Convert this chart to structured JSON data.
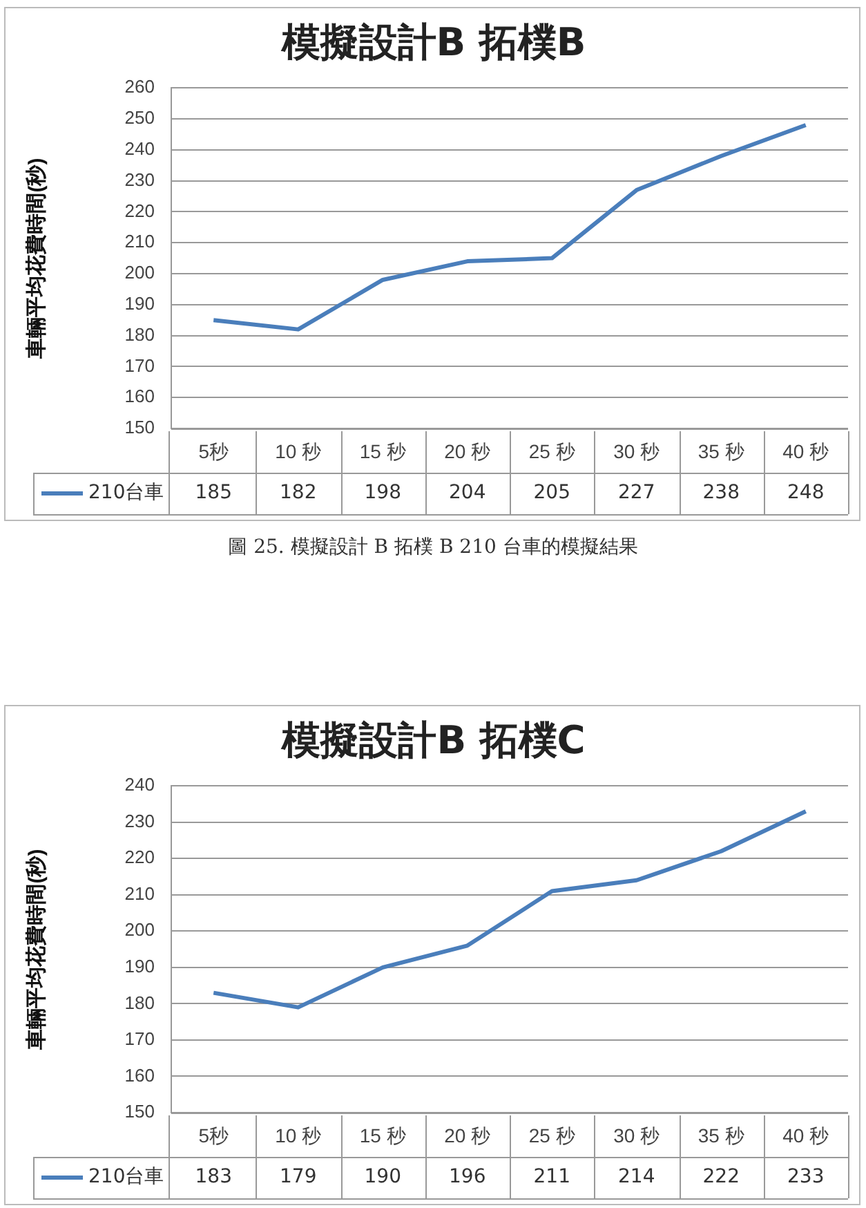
{
  "chart_data": [
    {
      "type": "line",
      "title": "模擬設計B 拓樸B",
      "ylabel": "車輛平均花費時間(秒)",
      "categories": [
        "5秒",
        "10 秒",
        "15 秒",
        "20 秒",
        "25 秒",
        "30 秒",
        "35 秒",
        "40 秒"
      ],
      "series": [
        {
          "name": "210台車",
          "color": "#4a7ebb",
          "values": [
            185,
            182,
            198,
            204,
            205,
            227,
            238,
            248
          ]
        }
      ],
      "ylim": [
        150,
        260
      ],
      "yticks": [
        150,
        160,
        170,
        180,
        190,
        200,
        210,
        220,
        230,
        240,
        250,
        260
      ],
      "grid": "y",
      "legend": "bottom",
      "data_labels": true,
      "annotations": [
        "圖 25. 模擬設計 B 拓樸 B 210 台車的模擬結果"
      ]
    },
    {
      "type": "line",
      "title": "模擬設計B 拓樸C",
      "ylabel": "車輛平均花費時間(秒)",
      "categories": [
        "5秒",
        "10 秒",
        "15 秒",
        "20 秒",
        "25 秒",
        "30 秒",
        "35 秒",
        "40 秒"
      ],
      "series": [
        {
          "name": "210台車",
          "color": "#4a7ebb",
          "values": [
            183,
            179,
            190,
            196,
            211,
            214,
            222,
            233
          ]
        }
      ],
      "ylim": [
        150,
        240
      ],
      "yticks": [
        150,
        160,
        170,
        180,
        190,
        200,
        210,
        220,
        230,
        240
      ],
      "grid": "y",
      "legend": "bottom",
      "data_labels": true
    }
  ]
}
